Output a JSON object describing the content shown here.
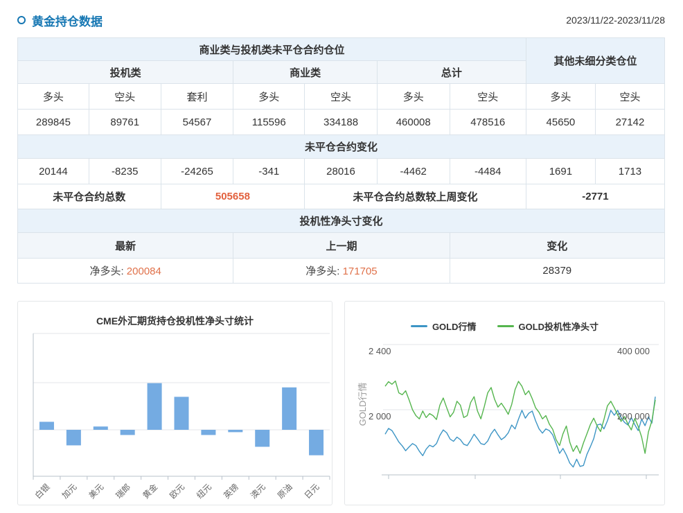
{
  "header": {
    "title": "黄金持仓数据",
    "date_range": "2023/11/22-2023/11/28"
  },
  "table": {
    "group_header_main": "商业类与投机类未平仓合约仓位",
    "group_header_other": "其他未细分类仓位",
    "category_headers": [
      "投机类",
      "商业类",
      "总计"
    ],
    "col_headers": [
      "多头",
      "空头",
      "套利",
      "多头",
      "空头",
      "多头",
      "空头",
      "多头",
      "空头"
    ],
    "open_interest_values": [
      "289845",
      "89761",
      "54567",
      "115596",
      "334188",
      "460008",
      "478516",
      "45650",
      "27142"
    ],
    "change_section_title": "未平仓合约变化",
    "change_values": [
      "20144",
      "-8235",
      "-24265",
      "-341",
      "28016",
      "-4462",
      "-4484",
      "1691",
      "1713"
    ],
    "total_label": "未平仓合约总数",
    "total_value": "505658",
    "total_change_label": "未平仓合约总数较上周变化",
    "total_change_value": "-2771",
    "net_section_title": "投机性净头寸变化",
    "net_headers": [
      "最新",
      "上一期",
      "变化"
    ],
    "net_latest_label": "净多头:",
    "net_latest_value": "200084",
    "net_prev_label": "净多头:",
    "net_prev_value": "171705",
    "net_change_value": "28379"
  },
  "colors": {
    "accent_blue": "#1677b3",
    "positive_orange": "#e0714a",
    "negative_green": "#2ca089",
    "header_bg": "#e9f2fa",
    "subheader_bg": "#f2f6fa",
    "bar_blue": "#74abe2",
    "line_blue": "#3d95c5",
    "line_green": "#55b54e"
  },
  "chart_data": [
    {
      "type": "bar",
      "title": "CME外汇期货持仓投机性净头寸统计",
      "categories": [
        "白银",
        "加元",
        "美元",
        "瑞郎",
        "黄金",
        "欧元",
        "纽元",
        "英镑",
        "澳元",
        "原油",
        "日元"
      ],
      "values": [
        0.17,
        -0.33,
        0.07,
        -0.11,
        0.99,
        0.7,
        -0.11,
        -0.05,
        -0.36,
        0.9,
        -0.54
      ],
      "value_note": "y-axis has no numeric labels; values estimated in gridline units (1 = spacing between horizontal gridlines)",
      "ylim": [
        -1,
        2
      ],
      "grid": true,
      "bar_color": "#74abe2",
      "xlabel": "",
      "ylabel": ""
    },
    {
      "type": "line",
      "legend": [
        "GOLD行情",
        "GOLD投机性净头寸"
      ],
      "legend_position": "top",
      "ylabel_left": "GOLD行情",
      "left_axis": {
        "ticks": [
          "2 400",
          "2 000"
        ],
        "tick_values": [
          2400,
          2000
        ],
        "series": "GOLD行情"
      },
      "right_axis": {
        "ticks": [
          "400 000",
          "200 000"
        ],
        "tick_values": [
          400000,
          200000
        ],
        "series": "GOLD投机性净头寸"
      },
      "x_axis": {
        "tick_count": 4,
        "labels": []
      },
      "series": [
        {
          "name": "GOLD行情",
          "axis": "left",
          "color": "#3d95c5",
          "values": [
            1850,
            1885,
            1872,
            1838,
            1802,
            1778,
            1748,
            1772,
            1792,
            1780,
            1745,
            1718,
            1758,
            1782,
            1772,
            1792,
            1842,
            1876,
            1858,
            1820,
            1806,
            1832,
            1816,
            1788,
            1780,
            1812,
            1850,
            1822,
            1792,
            1786,
            1808,
            1852,
            1880,
            1846,
            1816,
            1832,
            1858,
            1906,
            1882,
            1942,
            1996,
            1948,
            1978,
            1992,
            1932,
            1882,
            1856,
            1882,
            1872,
            1846,
            1792,
            1732,
            1762,
            1722,
            1672,
            1648,
            1696,
            1652,
            1658,
            1726,
            1772,
            1822,
            1906,
            1912,
            1882,
            1932,
            1996,
            1966,
            1996,
            1952,
            1922,
            1906,
            1952,
            1908,
            1872,
            1942,
            1902,
            1956,
            1918,
            2080
          ]
        },
        {
          "name": "GOLD投机性净头寸",
          "axis": "right",
          "color": "#55b54e",
          "values": [
            272000,
            286000,
            278000,
            288000,
            252000,
            246000,
            258000,
            230000,
            200000,
            182000,
            172000,
            196000,
            176000,
            188000,
            182000,
            170000,
            214000,
            236000,
            206000,
            178000,
            192000,
            226000,
            214000,
            176000,
            182000,
            222000,
            240000,
            196000,
            172000,
            210000,
            252000,
            268000,
            232000,
            208000,
            220000,
            204000,
            186000,
            216000,
            262000,
            287000,
            272000,
            246000,
            258000,
            234000,
            206000,
            192000,
            172000,
            182000,
            156000,
            140000,
            108000,
            90000,
            126000,
            150000,
            100000,
            72000,
            90000,
            66000,
            98000,
            126000,
            154000,
            174000,
            150000,
            133000,
            170000,
            212000,
            226000,
            206000,
            184000,
            164000,
            179000,
            156000,
            138000,
            173000,
            149000,
            116000,
            66000,
            132000,
            166000,
            230000
          ]
        }
      ]
    }
  ]
}
